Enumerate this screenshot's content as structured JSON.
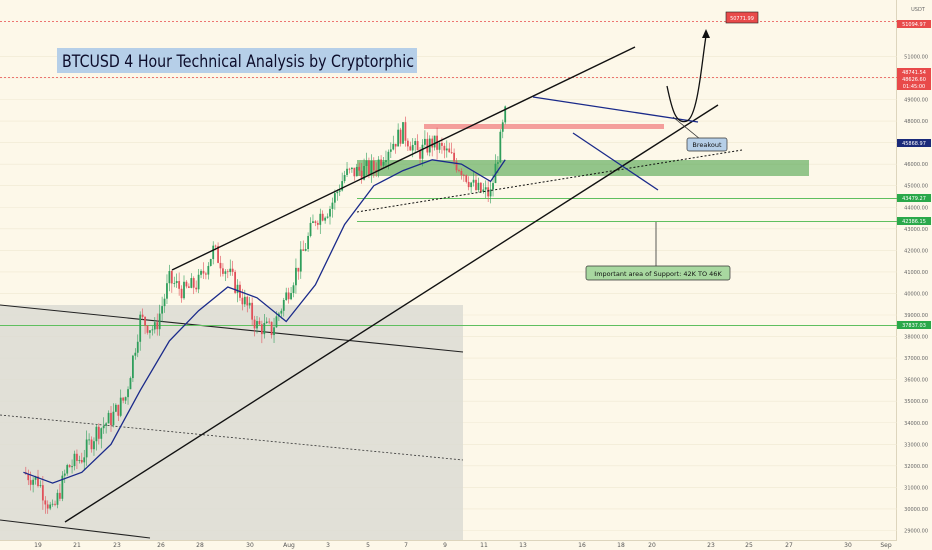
{
  "title": "BTCUSD 4 Hour Technical Analysis by Cryptorphic",
  "annotations": {
    "target": "50771.99",
    "breakout": "Breakout",
    "support": "Important area of Support: 42K TO 46K"
  },
  "axis": {
    "currency": "USDT",
    "x_ticks": [
      "19",
      "21",
      "23",
      "26",
      "28",
      "30",
      "Aug",
      "3",
      "5",
      "7",
      "9",
      "11",
      "13",
      "16",
      "18",
      "20",
      "23",
      "25",
      "27",
      "30",
      "Sep"
    ],
    "y_ticks": [
      "51000.00",
      "50000.00",
      "49000.00",
      "48000.00",
      "47000.00",
      "46000.00",
      "45000.00",
      "44000.00",
      "43000.00",
      "42000.00",
      "41000.00",
      "40000.00",
      "39000.00",
      "38000.00",
      "37000.00",
      "36000.00",
      "35000.00",
      "34000.00",
      "33000.00",
      "32000.00",
      "31000.00",
      "30000.00",
      "29000.00"
    ]
  },
  "price_tags": [
    {
      "text": "51094.97",
      "color": "#e84a4a"
    },
    {
      "text": "48741.54",
      "color": "#e84a4a"
    },
    {
      "text": "48626.60",
      "color": "#e84a4a"
    },
    {
      "text": "01:45:00",
      "color": "#e84a4a"
    },
    {
      "text": "45868.97",
      "color": "#1a2a7a"
    },
    {
      "text": "43479.27",
      "color": "#2aa84a"
    },
    {
      "text": "42386.15",
      "color": "#2aa84a"
    },
    {
      "text": "37837.03",
      "color": "#2aa84a"
    }
  ],
  "colors": {
    "background": "#fdf8e9",
    "up": "#2f9e5b",
    "down": "#e0505a",
    "ma": "#1a2a8a",
    "support_zone": "#3c9a3c",
    "resistance_zone": "#f08080",
    "title_bg": "#b6cfe8",
    "support_line": "#5fbf5f"
  },
  "chart_data": {
    "type": "candlestick",
    "title": "BTCUSD 4 Hour Technical Analysis by Cryptorphic",
    "xlabel": "",
    "ylabel": "",
    "x_range": [
      "Jul 18",
      "Sep 1"
    ],
    "ylim": [
      28600,
      51500
    ],
    "y_ticks": [
      29000,
      30000,
      31000,
      32000,
      33000,
      34000,
      35000,
      36000,
      37000,
      38000,
      39000,
      40000,
      41000,
      42000,
      43000,
      44000,
      45000,
      46000,
      47000,
      48000,
      49000,
      50000,
      51000
    ],
    "series": [
      {
        "name": "",
        "kind": "close",
        "x": [
          "Jul 18",
          "Jul 19",
          "Jul 20",
          "Jul 21",
          "Jul 22",
          "Jul 23",
          "Jul 24",
          "Jul 25",
          "Jul 26",
          "Jul 27",
          "Jul 28",
          "Jul 29",
          "Jul 30",
          "Jul 31",
          "Aug 1",
          "Aug 2",
          "Aug 3",
          "Aug 4",
          "Aug 5",
          "Aug 6",
          "Aug 7",
          "Aug 8",
          "Aug 9",
          "Aug 10",
          "Aug 11",
          "Aug 12",
          "Aug 13",
          "Aug 14",
          "Aug 15",
          "Aug 16",
          "Aug 17",
          "Aug 18",
          "Aug 19",
          "Aug 20"
        ],
        "values": [
          31700,
          31300,
          29800,
          31900,
          32400,
          33600,
          34200,
          35200,
          38800,
          38300,
          40600,
          40100,
          40500,
          42000,
          41000,
          39800,
          38500,
          38300,
          39900,
          41600,
          43500,
          44000,
          45500,
          45700,
          45800,
          46800,
          47500,
          46500,
          47000,
          46500,
          45800,
          44800,
          44600,
          48300
        ]
      },
      {
        "name": "",
        "kind": "moving_average",
        "x": [
          "Jul 18",
          "Jul 20",
          "Jul 22",
          "Jul 24",
          "Jul 26",
          "Jul 28",
          "Jul 30",
          "Aug 1",
          "Aug 3",
          "Aug 5",
          "Aug 7",
          "Aug 9",
          "Aug 11",
          "Aug 13",
          "Aug 15",
          "Aug 17",
          "Aug 19",
          "Aug 20"
        ],
        "values": [
          31700,
          31200,
          31700,
          33000,
          35500,
          37800,
          39200,
          40300,
          39800,
          38700,
          40400,
          43200,
          45000,
          45700,
          46200,
          46000,
          45200,
          46200
        ]
      }
    ],
    "levels": [
      {
        "name": "support",
        "value": 43479.27
      },
      {
        "name": "support",
        "value": 42386.15
      },
      {
        "name": "support",
        "value": 37837.03
      }
    ],
    "zones": [
      {
        "name": "support zone",
        "from": 44200,
        "to": 45100
      },
      {
        "name": "resistance zone",
        "from": 46900,
        "to": 47150
      }
    ],
    "annotations": [
      {
        "text": "50771.99",
        "x": "Aug 21",
        "y": 50771.99
      },
      {
        "text": "Breakout",
        "x": "Aug 21",
        "y": 45868.97
      },
      {
        "text": "Important area of Support: 42K TO 46K",
        "x": "Aug 20",
        "y": 40200
      }
    ],
    "grid": true,
    "legend": "none"
  }
}
